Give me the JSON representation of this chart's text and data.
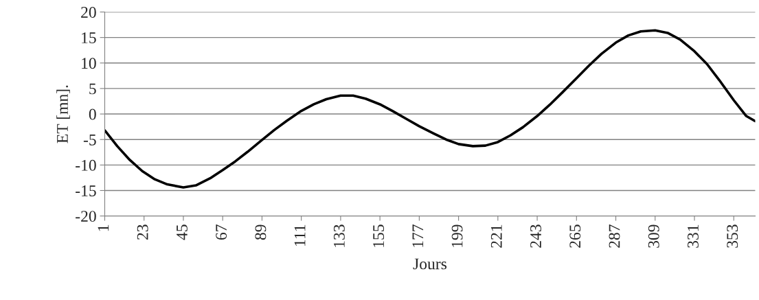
{
  "chart_data": {
    "type": "line",
    "xlabel": "Jours",
    "ylabel": "ET [mn].",
    "x": [
      1,
      8,
      15,
      22,
      29,
      36,
      45,
      52,
      60,
      67,
      74,
      81,
      89,
      96,
      103,
      111,
      118,
      125,
      133,
      140,
      147,
      155,
      162,
      170,
      177,
      185,
      192,
      199,
      207,
      214,
      221,
      228,
      235,
      243,
      250,
      257,
      265,
      272,
      279,
      287,
      294,
      301,
      309,
      316,
      323,
      331,
      338,
      345,
      353,
      360,
      365
    ],
    "series": [
      {
        "color": "#000000",
        "values": [
          -3.2,
          -6.3,
          -9.0,
          -11.2,
          -12.8,
          -13.8,
          -14.4,
          -14.0,
          -12.6,
          -11.0,
          -9.3,
          -7.4,
          -5.1,
          -3.1,
          -1.3,
          0.6,
          1.9,
          2.9,
          3.6,
          3.6,
          3.0,
          1.9,
          0.6,
          -1.0,
          -2.4,
          -3.8,
          -5.0,
          -5.9,
          -6.3,
          -6.2,
          -5.5,
          -4.2,
          -2.6,
          -0.4,
          1.8,
          4.2,
          7.0,
          9.5,
          11.8,
          14.0,
          15.4,
          16.2,
          16.4,
          15.9,
          14.6,
          12.3,
          9.8,
          6.6,
          2.7,
          -0.4,
          -1.4
        ]
      }
    ],
    "xlim": [
      1,
      365
    ],
    "xticks": [
      1,
      23,
      45,
      67,
      89,
      111,
      133,
      155,
      177,
      199,
      221,
      243,
      265,
      287,
      309,
      331,
      353
    ],
    "ylim": [
      -20,
      20
    ],
    "yticks": [
      -20,
      -15,
      -10,
      -5,
      0,
      5,
      10,
      15,
      20
    ],
    "grid": "y",
    "legend": false,
    "marker": "none",
    "line_style": "solid"
  }
}
